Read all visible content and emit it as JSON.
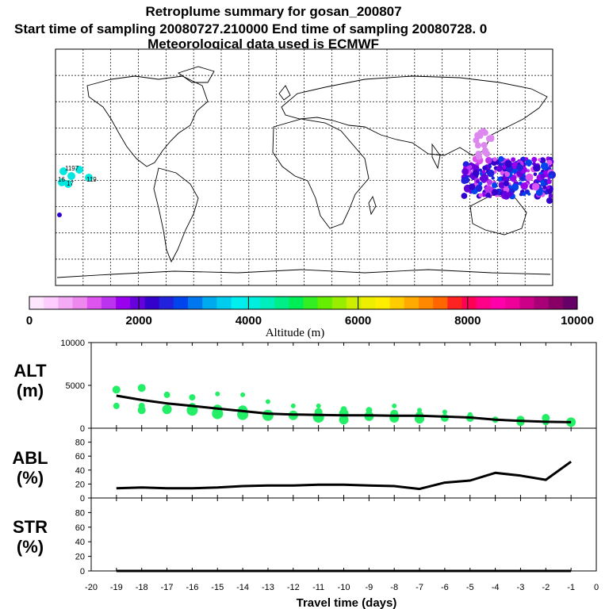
{
  "title_lines": [
    "Retroplume summary for gosan_200807",
    "Start time of sampling 20080727.210000     End time of sampling 20080728.     0",
    "Meteorological data used is ECMWF"
  ],
  "map": {
    "plume_labels": [
      "1197",
      "16",
      "17",
      "119"
    ]
  },
  "colorbar": {
    "label": "Altitude (m)",
    "ticks": [
      "0",
      "2000",
      "4000",
      "6000",
      "8000",
      "10000"
    ],
    "colors": [
      "#ffe6ff",
      "#ffccff",
      "#f5aaf5",
      "#ee88ee",
      "#dd55ee",
      "#bb33ee",
      "#9900ee",
      "#6600dd",
      "#3300cc",
      "#2222dd",
      "#0044ee",
      "#0077ee",
      "#00aaee",
      "#00ccee",
      "#00eeee",
      "#00eedd",
      "#00eebb",
      "#00ee88",
      "#00ee55",
      "#33ee22",
      "#66ee00",
      "#99ee00",
      "#ccee00",
      "#eeee00",
      "#ffee00",
      "#ffcc00",
      "#ffaa00",
      "#ff8800",
      "#ff6600",
      "#ff2222",
      "#ff0055",
      "#ff0088",
      "#ff00aa",
      "#ee0099",
      "#cc0088",
      "#aa0077",
      "#880066",
      "#660066"
    ]
  },
  "chart_data": [
    {
      "type": "line",
      "name": "ALT",
      "ylabel": [
        "ALT",
        "(m)"
      ],
      "ylim": [
        0,
        10000
      ],
      "yticks": [
        "0",
        "5000",
        "10000"
      ],
      "x": [
        -19,
        -18,
        -17,
        -16,
        -15,
        -14,
        -13,
        -12,
        -11,
        -10,
        -9,
        -8,
        -7,
        -6,
        -5,
        -4,
        -3,
        -2,
        -1
      ],
      "values": [
        3800,
        3300,
        2900,
        2600,
        2300,
        2000,
        1700,
        1600,
        1550,
        1500,
        1500,
        1450,
        1450,
        1350,
        1250,
        1000,
        850,
        750,
        700
      ],
      "scatter_x": [
        -19,
        -19,
        -18,
        -18,
        -18,
        -17,
        -17,
        -16,
        -16,
        -16,
        -15,
        -15,
        -15,
        -14,
        -14,
        -14,
        -13,
        -13,
        -12,
        -12,
        -11,
        -11,
        -11,
        -10,
        -10,
        -10,
        -9,
        -9,
        -8,
        -8,
        -8,
        -7,
        -7,
        -7,
        -6,
        -6,
        -5,
        -5,
        -4,
        -3,
        -3,
        -2,
        -2,
        -1
      ],
      "scatter_y": [
        4500,
        2600,
        4700,
        2600,
        2100,
        3900,
        2200,
        3600,
        2500,
        2100,
        4000,
        2200,
        1700,
        3900,
        2100,
        1600,
        3100,
        1500,
        2600,
        1500,
        2600,
        1900,
        1300,
        2200,
        1700,
        1000,
        2100,
        1400,
        2600,
        1700,
        1200,
        2100,
        1500,
        1100,
        1900,
        1200,
        1600,
        1200,
        1000,
        1000,
        700,
        1200,
        700,
        700
      ],
      "scatter_size": [
        5,
        4,
        5,
        4,
        5,
        4,
        6,
        4,
        5,
        7,
        3,
        6,
        7,
        3,
        6,
        7,
        3,
        7,
        3,
        6,
        3,
        5,
        7,
        4,
        6,
        6,
        4,
        6,
        3,
        5,
        6,
        3,
        5,
        6,
        3,
        5,
        3,
        5,
        4,
        5,
        5,
        5,
        4,
        6
      ]
    },
    {
      "type": "line",
      "name": "ABL",
      "ylabel": [
        "ABL",
        "(%)"
      ],
      "ylim": [
        0,
        100
      ],
      "yticks": [
        "0",
        "20",
        "40",
        "60",
        "80"
      ],
      "x": [
        -19,
        -18,
        -17,
        -16,
        -15,
        -14,
        -13,
        -12,
        -11,
        -10,
        -9,
        -8,
        -7,
        -6,
        -5,
        -4,
        -3,
        -2,
        -1
      ],
      "values": [
        14,
        15,
        14,
        14,
        15,
        17,
        18,
        18,
        19,
        19,
        18,
        17,
        13,
        22,
        25,
        36,
        32,
        26,
        52
      ]
    },
    {
      "type": "line",
      "name": "STR",
      "ylabel": [
        "STR",
        "(%)"
      ],
      "ylim": [
        0,
        100
      ],
      "yticks": [
        "0",
        "20",
        "40",
        "60",
        "80"
      ],
      "x": [
        -19,
        -18,
        -17,
        -16,
        -15,
        -14,
        -13,
        -12,
        -11,
        -10,
        -9,
        -8,
        -7,
        -6,
        -5,
        -4,
        -3,
        -2,
        -1
      ],
      "values": [
        0,
        0,
        0,
        0,
        0,
        0,
        0,
        0,
        0,
        0,
        0,
        0,
        0,
        0,
        0,
        0,
        0,
        0,
        0
      ]
    }
  ],
  "x_axis": {
    "xlim": [
      -20,
      0
    ],
    "ticks": [
      "-20",
      "-19",
      "-18",
      "-17",
      "-16",
      "-15",
      "-14",
      "-13",
      "-12",
      "-11",
      "-10",
      "-9",
      "-8",
      "-7",
      "-6",
      "-5",
      "-4",
      "-3",
      "-2",
      "-1",
      "0"
    ],
    "label": "Travel time (days)"
  }
}
